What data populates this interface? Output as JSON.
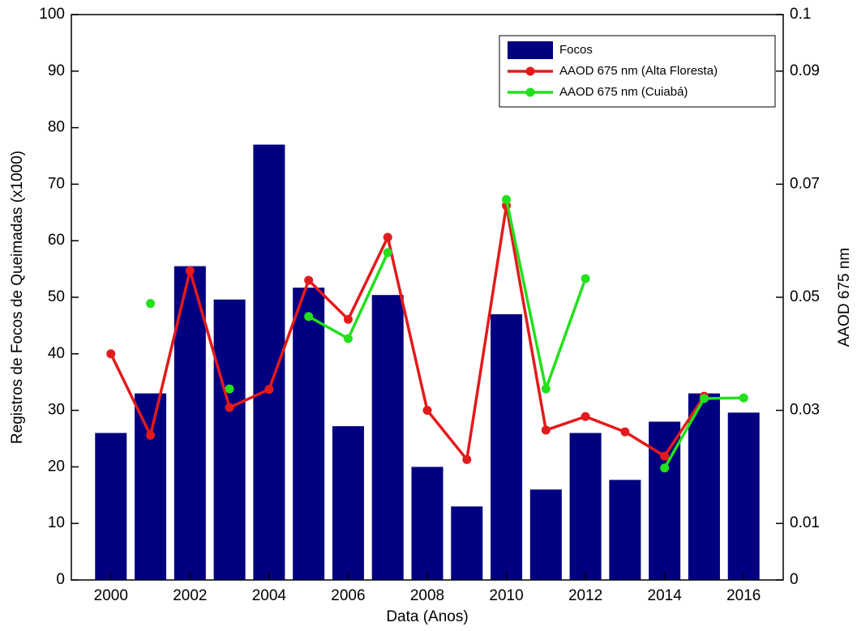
{
  "chart_data": {
    "type": "bar-line",
    "xlabel": "Data (Anos)",
    "ylabel": "Registros de Focos de Queimadas (x1000)",
    "y2label": "AAOD 675 nm",
    "x": [
      2000,
      2001,
      2002,
      2003,
      2004,
      2005,
      2006,
      2007,
      2008,
      2009,
      2010,
      2011,
      2012,
      2013,
      2014,
      2015,
      2016
    ],
    "xlim": [
      1999,
      2017
    ],
    "xticks": [
      2000,
      2002,
      2004,
      2006,
      2008,
      2010,
      2012,
      2014,
      2016
    ],
    "ylim": [
      0,
      100
    ],
    "yticks": [
      0,
      10,
      20,
      30,
      40,
      50,
      60,
      70,
      80,
      90,
      100
    ],
    "y2lim": [
      0,
      0.1
    ],
    "y2ticks": [
      0,
      0.01,
      0.03,
      0.05,
      0.07,
      0.09,
      0.1
    ],
    "legend": "upper right",
    "series": [
      {
        "name": "Focos",
        "type": "bar",
        "color": "#000080",
        "values": [
          26,
          33,
          55.5,
          49.6,
          77,
          51.7,
          27.2,
          50.4,
          20,
          13,
          47,
          16,
          26,
          17.7,
          28,
          33,
          29.6
        ]
      },
      {
        "name": "AAOD 675 nm (Alta Floresta)",
        "type": "line",
        "axis": "y2",
        "color": "#e31a1c",
        "values": [
          0.04,
          0.0256,
          0.0547,
          0.0305,
          0.0337,
          0.053,
          0.0461,
          0.0606,
          0.03,
          0.0213,
          0.0662,
          0.0265,
          0.0289,
          0.0262,
          0.0219,
          0.0325,
          null
        ]
      },
      {
        "name": "AAOD 675 nm (Cuiabá)",
        "type": "line",
        "axis": "y2",
        "color": "#22e01c",
        "values": [
          null,
          0.0489,
          null,
          0.0338,
          null,
          0.0466,
          0.0427,
          0.0579,
          null,
          null,
          0.0673,
          0.0338,
          0.0533,
          null,
          0.0198,
          0.0321,
          0.0322
        ]
      }
    ]
  }
}
